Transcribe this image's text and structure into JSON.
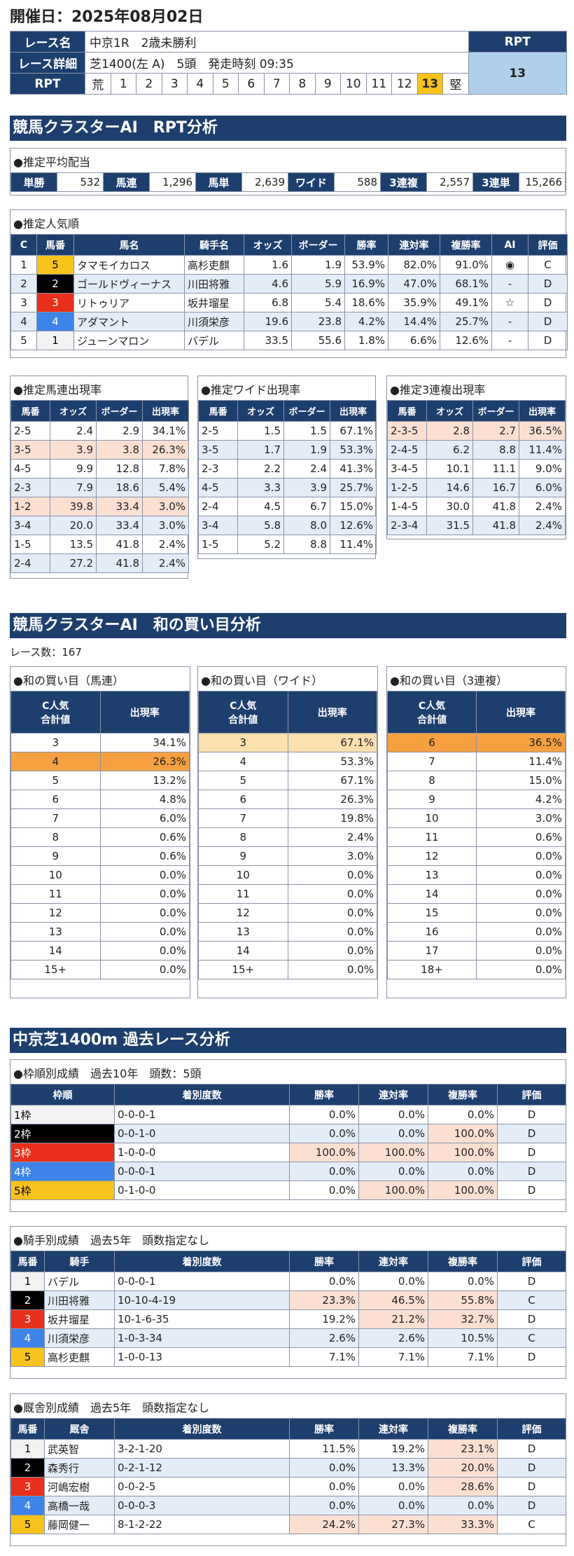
{
  "event_date": "開催日：2025年08月02日",
  "race": {
    "name_label": "レース名",
    "name": "中京1R　2歳未勝利",
    "detail_label": "レース詳細",
    "detail": "芝1400(左 A)　5頭　発走時刻 09:35",
    "rpt_label": "RPT",
    "rpt_scale": [
      "荒",
      "1",
      "2",
      "3",
      "4",
      "5",
      "6",
      "7",
      "8",
      "9",
      "10",
      "11",
      "12",
      "13",
      "堅"
    ],
    "rpt_value": "13"
  },
  "sec1": "競馬クラスターAI　RPT分析",
  "avg": {
    "title": "●推定平均配当",
    "items": [
      [
        "単勝",
        "532"
      ],
      [
        "馬連",
        "1,296"
      ],
      [
        "馬単",
        "2,639"
      ],
      [
        "ワイド",
        "588"
      ],
      [
        "3連複",
        "2,557"
      ],
      [
        "3連単",
        "15,266"
      ]
    ]
  },
  "pop": {
    "title": "●推定人気順",
    "headers": [
      "C",
      "馬番",
      "馬名",
      "騎手名",
      "オッズ",
      "ボーダー",
      "勝率",
      "連対率",
      "複勝率",
      "AI",
      "評価"
    ],
    "rows": [
      [
        "1",
        "5",
        "タマモイカロス",
        "高杉吏麒",
        "1.6",
        "1.9",
        "53.9%",
        "82.0%",
        "91.0%",
        "◉",
        "C"
      ],
      [
        "2",
        "2",
        "ゴールドヴィーナス",
        "川田将雅",
        "4.6",
        "5.9",
        "16.9%",
        "47.0%",
        "68.1%",
        "-",
        "D"
      ],
      [
        "3",
        "3",
        "リトゥリア",
        "坂井瑠星",
        "6.8",
        "5.4",
        "18.6%",
        "35.9%",
        "49.1%",
        "☆",
        "D"
      ],
      [
        "4",
        "4",
        "アダマント",
        "川須栄彦",
        "19.6",
        "23.8",
        "4.2%",
        "14.4%",
        "25.7%",
        "-",
        "D"
      ],
      [
        "5",
        "1",
        "ジューンマロン",
        "バデル",
        "33.5",
        "55.6",
        "1.8%",
        "6.6%",
        "12.6%",
        "-",
        "D"
      ]
    ]
  },
  "umaren": {
    "title": "●推定馬連出現率",
    "headers": [
      "馬番",
      "オッズ",
      "ボーダー",
      "出現率"
    ],
    "rows": [
      [
        "2-5",
        "2.4",
        "2.9",
        "34.1%"
      ],
      [
        "3-5",
        "3.9",
        "3.8",
        "26.3%"
      ],
      [
        "4-5",
        "9.9",
        "12.8",
        "7.8%"
      ],
      [
        "2-3",
        "7.9",
        "18.6",
        "5.4%"
      ],
      [
        "1-2",
        "39.8",
        "33.4",
        "3.0%"
      ],
      [
        "3-4",
        "20.0",
        "33.4",
        "3.0%"
      ],
      [
        "1-5",
        "13.5",
        "41.8",
        "2.4%"
      ],
      [
        "2-4",
        "27.2",
        "41.8",
        "2.4%"
      ]
    ]
  },
  "wide": {
    "title": "●推定ワイド出現率",
    "headers": [
      "馬番",
      "オッズ",
      "ボーダー",
      "出現率"
    ],
    "rows": [
      [
        "2-5",
        "1.5",
        "1.5",
        "67.1%"
      ],
      [
        "3-5",
        "1.7",
        "1.9",
        "53.3%"
      ],
      [
        "2-3",
        "2.2",
        "2.4",
        "41.3%"
      ],
      [
        "4-5",
        "3.3",
        "3.9",
        "25.7%"
      ],
      [
        "2-4",
        "4.5",
        "6.7",
        "15.0%"
      ],
      [
        "3-4",
        "5.8",
        "8.0",
        "12.6%"
      ],
      [
        "1-5",
        "5.2",
        "8.8",
        "11.4%"
      ]
    ]
  },
  "sanren": {
    "title": "●推定3連複出現率",
    "headers": [
      "馬番",
      "オッズ",
      "ボーダー",
      "出現率"
    ],
    "rows": [
      [
        "2-3-5",
        "2.8",
        "2.7",
        "36.5%"
      ],
      [
        "2-4-5",
        "6.2",
        "8.8",
        "11.4%"
      ],
      [
        "3-4-5",
        "10.1",
        "11.1",
        "9.0%"
      ],
      [
        "1-2-5",
        "14.6",
        "16.7",
        "6.0%"
      ],
      [
        "1-4-5",
        "30.0",
        "41.8",
        "2.4%"
      ],
      [
        "2-3-4",
        "31.5",
        "41.8",
        "2.4%"
      ]
    ]
  },
  "sec2": "競馬クラスターAI　和の買い目分析",
  "race_count": "レース数：167",
  "sum_headers": [
    "C人気\n合計値",
    "出現率"
  ],
  "sum_umaren": {
    "title": "●和の買い目（馬連）",
    "rows": [
      [
        "3",
        "34.1%"
      ],
      [
        "4",
        "26.3%"
      ],
      [
        "5",
        "13.2%"
      ],
      [
        "6",
        "4.8%"
      ],
      [
        "7",
        "6.0%"
      ],
      [
        "8",
        "0.6%"
      ],
      [
        "9",
        "0.6%"
      ],
      [
        "10",
        "0.0%"
      ],
      [
        "11",
        "0.0%"
      ],
      [
        "12",
        "0.0%"
      ],
      [
        "13",
        "0.0%"
      ],
      [
        "14",
        "0.0%"
      ],
      [
        "15+",
        "0.0%"
      ]
    ]
  },
  "sum_wide": {
    "title": "●和の買い目（ワイド）",
    "rows": [
      [
        "3",
        "67.1%"
      ],
      [
        "4",
        "53.3%"
      ],
      [
        "5",
        "67.1%"
      ],
      [
        "6",
        "26.3%"
      ],
      [
        "7",
        "19.8%"
      ],
      [
        "8",
        "2.4%"
      ],
      [
        "9",
        "3.0%"
      ],
      [
        "10",
        "0.0%"
      ],
      [
        "11",
        "0.0%"
      ],
      [
        "12",
        "0.0%"
      ],
      [
        "13",
        "0.0%"
      ],
      [
        "14",
        "0.0%"
      ],
      [
        "15+",
        "0.0%"
      ]
    ]
  },
  "sum_san": {
    "title": "●和の買い目（3連複）",
    "rows": [
      [
        "6",
        "36.5%"
      ],
      [
        "7",
        "11.4%"
      ],
      [
        "8",
        "15.0%"
      ],
      [
        "9",
        "4.2%"
      ],
      [
        "10",
        "3.0%"
      ],
      [
        "11",
        "0.6%"
      ],
      [
        "12",
        "0.0%"
      ],
      [
        "13",
        "0.0%"
      ],
      [
        "14",
        "0.0%"
      ],
      [
        "15",
        "0.0%"
      ],
      [
        "16",
        "0.0%"
      ],
      [
        "17",
        "0.0%"
      ],
      [
        "18+",
        "0.0%"
      ]
    ]
  },
  "sec3": "中京芝1400m 過去レース分析",
  "waku": {
    "title": "●枠順別成績　過去10年　頭数：5頭",
    "headers": [
      "枠順",
      "着別度数",
      "勝率",
      "連対率",
      "複勝率",
      "評価"
    ],
    "rows": [
      [
        "1枠",
        "0-0-0-1",
        "0.0%",
        "0.0%",
        "0.0%",
        "D"
      ],
      [
        "2枠",
        "0-0-1-0",
        "0.0%",
        "0.0%",
        "100.0%",
        "D"
      ],
      [
        "3枠",
        "1-0-0-0",
        "100.0%",
        "100.0%",
        "100.0%",
        "D"
      ],
      [
        "4枠",
        "0-0-0-1",
        "0.0%",
        "0.0%",
        "0.0%",
        "D"
      ],
      [
        "5枠",
        "0-1-0-0",
        "0.0%",
        "100.0%",
        "100.0%",
        "D"
      ]
    ]
  },
  "jockey": {
    "title": "●騎手別成績　過去5年　頭数指定なし",
    "headers": [
      "馬番",
      "騎手",
      "着別度数",
      "勝率",
      "連対率",
      "複勝率",
      "評価"
    ],
    "rows": [
      [
        "1",
        "バデル",
        "0-0-0-1",
        "0.0%",
        "0.0%",
        "0.0%",
        "D"
      ],
      [
        "2",
        "川田将雅",
        "10-10-4-19",
        "23.3%",
        "46.5%",
        "55.8%",
        "C"
      ],
      [
        "3",
        "坂井瑠星",
        "10-1-6-35",
        "19.2%",
        "21.2%",
        "32.7%",
        "D"
      ],
      [
        "4",
        "川須栄彦",
        "1-0-3-34",
        "2.6%",
        "2.6%",
        "10.5%",
        "C"
      ],
      [
        "5",
        "高杉吏麒",
        "1-0-0-13",
        "7.1%",
        "7.1%",
        "7.1%",
        "D"
      ]
    ]
  },
  "stable": {
    "title": "●厩舎別成績　過去5年　頭数指定なし",
    "headers": [
      "馬番",
      "厩舎",
      "着別度数",
      "勝率",
      "連対率",
      "複勝率",
      "評価"
    ],
    "rows": [
      [
        "1",
        "武英智",
        "3-2-1-20",
        "11.5%",
        "19.2%",
        "23.1%",
        "D"
      ],
      [
        "2",
        "森秀行",
        "0-2-1-12",
        "0.0%",
        "13.3%",
        "20.0%",
        "D"
      ],
      [
        "3",
        "河嶋宏樹",
        "0-0-2-5",
        "0.0%",
        "0.0%",
        "28.6%",
        "D"
      ],
      [
        "4",
        "高橋一哉",
        "0-0-0-3",
        "0.0%",
        "0.0%",
        "0.0%",
        "D"
      ],
      [
        "5",
        "藤岡健一",
        "8-1-2-22",
        "24.2%",
        "27.3%",
        "33.3%",
        "C"
      ]
    ]
  }
}
